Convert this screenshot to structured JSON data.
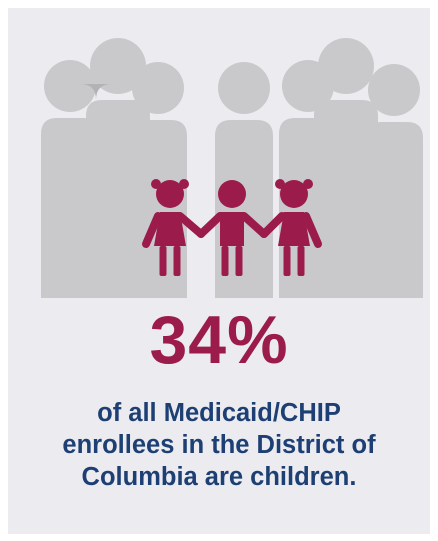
{
  "infographic": {
    "percent": "34%",
    "caption_lines": [
      "of all Medicaid/CHIP",
      "enrollees in the District of",
      "Columbia are children."
    ]
  },
  "colors": {
    "background": "#ececf0",
    "adult_silhouettes_back": "#c9c9cc",
    "adult_silhouettes_front": "#b3b3b6",
    "children_icon": "#9b1c4a",
    "percent_text": "#9b1c4a",
    "caption_text": "#1d3f73"
  },
  "icons": {
    "adults": "adult-silhouettes-icon",
    "children": "children-holding-hands-icon"
  }
}
